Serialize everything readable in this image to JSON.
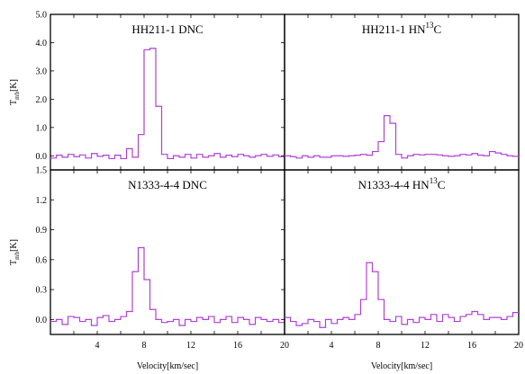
{
  "chart_data": [
    {
      "type": "line",
      "panel": "top-left",
      "title": {
        "main": "HH211-1 DNC",
        "sup": ""
      },
      "ylabel": "T",
      "ylabel_sub": "mb",
      "ylabel_unit": "[K]",
      "xlim": [
        0,
        20
      ],
      "ylim": [
        -0.5,
        5.0
      ],
      "yticks": [
        "0.0",
        "1.0",
        "2.0",
        "3.0",
        "4.0",
        "5.0"
      ],
      "xticks": [],
      "series": [
        {
          "x": [
            0,
            0.5,
            1,
            1.5,
            2,
            2.5,
            3,
            3.5,
            4,
            4.5,
            5,
            5.5,
            6,
            6.5,
            7,
            7.5,
            8,
            8.5,
            9,
            9.5,
            10,
            10.5,
            11,
            11.5,
            12,
            12.5,
            13,
            13.5,
            14,
            14.5,
            15,
            15.5,
            16,
            16.5,
            17,
            17.5,
            18,
            18.5,
            19,
            19.5
          ],
          "y": [
            -0.08,
            0.02,
            -0.05,
            0.05,
            -0.03,
            0.03,
            -0.08,
            0.08,
            -0.02,
            0.02,
            -0.1,
            0.02,
            -0.1,
            0.25,
            -0.05,
            0.75,
            3.75,
            3.8,
            1.75,
            0.05,
            -0.1,
            0.0,
            -0.05,
            0.05,
            -0.08,
            0.05,
            -0.05,
            0.0,
            0.08,
            -0.05,
            0.02,
            -0.03,
            0.05,
            0.0,
            -0.05,
            0.0,
            0.05,
            -0.02,
            0.03,
            -0.03
          ],
          "color": "#b040d8"
        }
      ]
    },
    {
      "type": "line",
      "panel": "top-right",
      "title": {
        "main": "HH211-1 HN",
        "sup": "13",
        "post": "C"
      },
      "xlim": [
        0,
        20
      ],
      "ylim": [
        -0.5,
        5.0
      ],
      "yticks": [],
      "xticks": [],
      "series": [
        {
          "x": [
            0,
            0.5,
            1,
            1.5,
            2,
            2.5,
            3,
            3.5,
            4,
            4.5,
            5,
            5.5,
            6,
            6.5,
            7,
            7.5,
            8,
            8.5,
            9,
            9.5,
            10,
            10.5,
            11,
            11.5,
            12,
            12.5,
            13,
            13.5,
            14,
            14.5,
            15,
            15.5,
            16,
            16.5,
            17,
            17.5,
            18,
            18.5,
            19,
            19.5
          ],
          "y": [
            0.0,
            -0.03,
            -0.08,
            0.0,
            -0.05,
            0.0,
            -0.05,
            -0.05,
            0.0,
            0.0,
            -0.02,
            0.0,
            0.02,
            0.05,
            0.02,
            0.15,
            0.5,
            1.42,
            1.15,
            0.05,
            -0.08,
            0.0,
            0.05,
            0.03,
            0.05,
            0.05,
            0.03,
            0.0,
            -0.02,
            0.0,
            0.05,
            0.03,
            0.08,
            0.02,
            0.0,
            0.15,
            0.1,
            0.05,
            0.0,
            -0.02
          ],
          "color": "#b040d8"
        }
      ]
    },
    {
      "type": "line",
      "panel": "bottom-left",
      "title": {
        "main": "N1333-4-4 DNC",
        "sup": ""
      },
      "ylabel": "T",
      "ylabel_sub": "mb",
      "ylabel_unit": "[K]",
      "xlabel": "Velocity[km/sec]",
      "xlim": [
        0,
        20
      ],
      "ylim": [
        -0.15,
        1.5
      ],
      "yticks": [
        "0.0",
        "0.3",
        "0.6",
        "0.9",
        "1.2",
        "1.5"
      ],
      "xticks": [
        "4",
        "8",
        "12",
        "16",
        "20"
      ],
      "series": [
        {
          "x": [
            0,
            0.5,
            1,
            1.5,
            2,
            2.5,
            3,
            3.5,
            4,
            4.5,
            5,
            5.5,
            6,
            6.5,
            7,
            7.5,
            8,
            8.5,
            9,
            9.5,
            10,
            10.5,
            11,
            11.5,
            12,
            12.5,
            13,
            13.5,
            14,
            14.5,
            15,
            15.5,
            16,
            16.5,
            17,
            17.5,
            18,
            18.5,
            19,
            19.5
          ],
          "y": [
            -0.02,
            0.0,
            -0.05,
            0.03,
            0.02,
            -0.02,
            0.0,
            -0.06,
            0.02,
            0.04,
            -0.02,
            0.0,
            0.03,
            0.08,
            0.48,
            0.72,
            0.4,
            0.1,
            0.0,
            -0.03,
            -0.02,
            0.0,
            -0.06,
            0.0,
            -0.02,
            0.02,
            0.0,
            0.03,
            -0.03,
            0.0,
            0.03,
            -0.03,
            0.02,
            0.0,
            -0.05,
            0.02,
            0.0,
            -0.02,
            0.0,
            -0.03
          ],
          "color": "#b040d8"
        }
      ]
    },
    {
      "type": "line",
      "panel": "bottom-right",
      "title": {
        "main": "N1333-4-4 HN",
        "sup": "13",
        "post": "C"
      },
      "xlabel": "Velocity[km/sec]",
      "xlim": [
        0,
        20
      ],
      "ylim": [
        -0.15,
        1.5
      ],
      "yticks": [],
      "xticks": [
        "4",
        "8",
        "12",
        "16",
        "20"
      ],
      "series": [
        {
          "x": [
            0,
            0.5,
            1,
            1.5,
            2,
            2.5,
            3,
            3.5,
            4,
            4.5,
            5,
            5.5,
            6,
            6.5,
            7,
            7.5,
            8,
            8.5,
            9,
            9.5,
            10,
            10.5,
            11,
            11.5,
            12,
            12.5,
            13,
            13.5,
            14,
            14.5,
            15,
            15.5,
            16,
            16.5,
            17,
            17.5,
            18,
            18.5,
            19,
            19.5
          ],
          "y": [
            0.02,
            -0.02,
            -0.06,
            -0.04,
            0.0,
            -0.02,
            -0.08,
            0.0,
            -0.04,
            0.0,
            0.02,
            0.0,
            0.05,
            0.2,
            0.57,
            0.48,
            0.2,
            0.0,
            -0.02,
            0.03,
            -0.05,
            0.0,
            -0.03,
            0.02,
            0.0,
            0.05,
            -0.02,
            0.05,
            0.02,
            -0.02,
            0.03,
            0.05,
            0.08,
            0.05,
            0.0,
            0.02,
            0.02,
            0.0,
            0.03,
            0.07
          ],
          "color": "#b040d8"
        }
      ]
    }
  ]
}
